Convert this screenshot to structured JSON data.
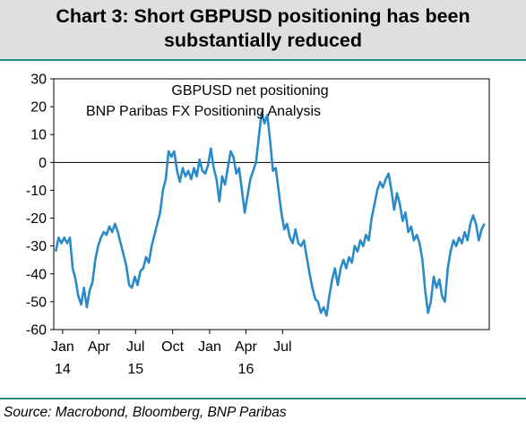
{
  "header": {
    "title_line1": "Chart 3: Short GBPUSD positioning has been",
    "title_line2": "substantially reduced"
  },
  "footer": {
    "source": "Source: Macrobond, Bloomberg, BNP Paribas"
  },
  "colors": {
    "line": "#2b8ac8",
    "accent_rule": "#2a8c82",
    "header_bg": "#dde0df"
  },
  "chart_data": {
    "type": "line",
    "title": "",
    "annotations": [
      "GBPUSD net positioning",
      "BNP Paribas FX Positioning Analysis"
    ],
    "xlabel": "",
    "ylabel": "",
    "ylim": [
      -60,
      30
    ],
    "yticks": [
      30,
      20,
      10,
      0,
      -10,
      -20,
      -30,
      -40,
      -50,
      -60
    ],
    "x_tick_labels": [
      "Jan",
      "Apr",
      "Jul",
      "Oct",
      "Jan",
      "Apr",
      "Jul"
    ],
    "x_tick_dates": [
      "2014-01",
      "2014-04",
      "2014-07",
      "2014-10",
      "2015-01",
      "2015-04",
      "2015-07"
    ],
    "x_year_labels": [
      {
        "label": "14",
        "date": "2014-01"
      },
      {
        "label": "15",
        "date": "2014-07"
      },
      {
        "label": "16",
        "date": "2015-04"
      }
    ],
    "zero_line": true,
    "grid": false,
    "series": [
      {
        "points": [
          [
            "2013-12-15",
            -32
          ],
          [
            "2013-12-22",
            -27
          ],
          [
            "2013-12-29",
            -29
          ],
          [
            "2014-01-05",
            -27
          ],
          [
            "2014-01-12",
            -29
          ],
          [
            "2014-01-19",
            -27
          ],
          [
            "2014-01-26",
            -38
          ],
          [
            "2014-02-02",
            -42
          ],
          [
            "2014-02-09",
            -48
          ],
          [
            "2014-02-16",
            -51
          ],
          [
            "2014-02-23",
            -45
          ],
          [
            "2014-03-02",
            -52
          ],
          [
            "2014-03-09",
            -46
          ],
          [
            "2014-03-16",
            -43
          ],
          [
            "2014-03-23",
            -35
          ],
          [
            "2014-03-30",
            -30
          ],
          [
            "2014-04-06",
            -27
          ],
          [
            "2014-04-13",
            -25
          ],
          [
            "2014-04-20",
            -26
          ],
          [
            "2014-04-27",
            -23
          ],
          [
            "2014-05-04",
            -25
          ],
          [
            "2014-05-11",
            -22
          ],
          [
            "2014-05-18",
            -25
          ],
          [
            "2014-05-25",
            -29
          ],
          [
            "2014-06-01",
            -33
          ],
          [
            "2014-06-08",
            -37
          ],
          [
            "2014-06-15",
            -44
          ],
          [
            "2014-06-22",
            -45
          ],
          [
            "2014-06-29",
            -41
          ],
          [
            "2014-07-06",
            -44
          ],
          [
            "2014-07-13",
            -39
          ],
          [
            "2014-07-20",
            -38
          ],
          [
            "2014-07-27",
            -34
          ],
          [
            "2014-08-03",
            -36
          ],
          [
            "2014-08-10",
            -30
          ],
          [
            "2014-08-17",
            -26
          ],
          [
            "2014-08-24",
            -22
          ],
          [
            "2014-08-31",
            -18
          ],
          [
            "2014-09-07",
            -10
          ],
          [
            "2014-09-14",
            -6
          ],
          [
            "2014-09-21",
            4
          ],
          [
            "2014-09-28",
            2
          ],
          [
            "2014-10-05",
            4
          ],
          [
            "2014-10-12",
            -3
          ],
          [
            "2014-10-19",
            -7
          ],
          [
            "2014-10-26",
            -2
          ],
          [
            "2014-11-02",
            -5
          ],
          [
            "2014-11-09",
            -3
          ],
          [
            "2014-11-16",
            -6
          ],
          [
            "2014-11-23",
            -2
          ],
          [
            "2014-11-30",
            -5
          ],
          [
            "2014-12-07",
            1
          ],
          [
            "2014-12-14",
            -3
          ],
          [
            "2014-12-21",
            -4
          ],
          [
            "2014-12-28",
            -1
          ],
          [
            "2015-01-04",
            5
          ],
          [
            "2015-01-11",
            -2
          ],
          [
            "2015-01-18",
            -6
          ],
          [
            "2015-01-25",
            -14
          ],
          [
            "2015-02-01",
            -5
          ],
          [
            "2015-02-08",
            -8
          ],
          [
            "2015-02-15",
            -2
          ],
          [
            "2015-02-22",
            4
          ],
          [
            "2015-03-01",
            2
          ],
          [
            "2015-03-08",
            -4
          ],
          [
            "2015-03-15",
            -2
          ],
          [
            "2015-03-22",
            -10
          ],
          [
            "2015-03-29",
            -18
          ],
          [
            "2015-04-05",
            -12
          ],
          [
            "2015-04-12",
            -6
          ],
          [
            "2015-04-19",
            -3
          ],
          [
            "2015-04-26",
            0
          ],
          [
            "2015-05-03",
            9
          ],
          [
            "2015-05-10",
            18
          ],
          [
            "2015-05-17",
            14
          ],
          [
            "2015-05-24",
            17
          ],
          [
            "2015-05-31",
            8
          ],
          [
            "2015-06-07",
            -3
          ],
          [
            "2015-06-14",
            -2
          ],
          [
            "2015-06-21",
            -10
          ],
          [
            "2015-06-28",
            -18
          ],
          [
            "2015-07-05",
            -24
          ],
          [
            "2015-07-12",
            -22
          ],
          [
            "2015-07-19",
            -27
          ],
          [
            "2015-07-26",
            -29
          ],
          [
            "2015-08-02",
            -24
          ],
          [
            "2015-08-09",
            -29
          ],
          [
            "2015-08-16",
            -30
          ],
          [
            "2015-08-23",
            -28
          ],
          [
            "2015-08-30",
            -34
          ],
          [
            "2015-09-06",
            -40
          ],
          [
            "2015-09-13",
            -45
          ],
          [
            "2015-09-20",
            -49
          ],
          [
            "2015-09-27",
            -50
          ],
          [
            "2015-10-04",
            -54
          ],
          [
            "2015-10-11",
            -52
          ],
          [
            "2015-10-18",
            -55
          ],
          [
            "2015-10-25",
            -48
          ],
          [
            "2015-11-01",
            -42
          ],
          [
            "2015-11-08",
            -38
          ],
          [
            "2015-11-15",
            -44
          ],
          [
            "2015-11-22",
            -38
          ],
          [
            "2015-11-29",
            -35
          ],
          [
            "2015-12-06",
            -38
          ],
          [
            "2015-12-13",
            -34
          ],
          [
            "2015-12-20",
            -36
          ],
          [
            "2015-12-27",
            -30
          ],
          [
            "2016-01-03",
            -32
          ],
          [
            "2016-01-10",
            -28
          ],
          [
            "2016-01-17",
            -30
          ],
          [
            "2016-01-24",
            -26
          ],
          [
            "2016-01-31",
            -28
          ],
          [
            "2016-02-07",
            -20
          ],
          [
            "2016-02-14",
            -15
          ],
          [
            "2016-02-21",
            -10
          ],
          [
            "2016-02-28",
            -7
          ],
          [
            "2016-03-06",
            -9
          ],
          [
            "2016-03-13",
            -6
          ],
          [
            "2016-03-20",
            -4
          ],
          [
            "2016-03-27",
            -10
          ],
          [
            "2016-04-03",
            -17
          ],
          [
            "2016-04-10",
            -11
          ],
          [
            "2016-04-17",
            -15
          ],
          [
            "2016-04-24",
            -21
          ],
          [
            "2016-05-01",
            -18
          ],
          [
            "2016-05-08",
            -25
          ],
          [
            "2016-05-15",
            -23
          ],
          [
            "2016-05-22",
            -28
          ],
          [
            "2016-05-29",
            -26
          ],
          [
            "2016-06-05",
            -29
          ],
          [
            "2016-06-12",
            -35
          ],
          [
            "2016-06-19",
            -46
          ],
          [
            "2016-06-26",
            -54
          ],
          [
            "2016-07-03",
            -50
          ],
          [
            "2016-07-10",
            -41
          ],
          [
            "2016-07-17",
            -45
          ],
          [
            "2016-07-24",
            -42
          ],
          [
            "2016-07-31",
            -48
          ],
          [
            "2016-08-07",
            -50
          ],
          [
            "2016-08-14",
            -38
          ],
          [
            "2016-08-21",
            -32
          ],
          [
            "2016-08-28",
            -28
          ],
          [
            "2016-09-04",
            -30
          ],
          [
            "2016-09-11",
            -27
          ],
          [
            "2016-09-18",
            -29
          ],
          [
            "2016-09-25",
            -25
          ],
          [
            "2016-10-02",
            -28
          ],
          [
            "2016-10-09",
            -22
          ],
          [
            "2016-10-16",
            -19
          ],
          [
            "2016-10-23",
            -22
          ],
          [
            "2016-10-30",
            -28
          ],
          [
            "2016-11-06",
            -24
          ],
          [
            "2016-11-13",
            -22
          ]
        ]
      }
    ]
  }
}
